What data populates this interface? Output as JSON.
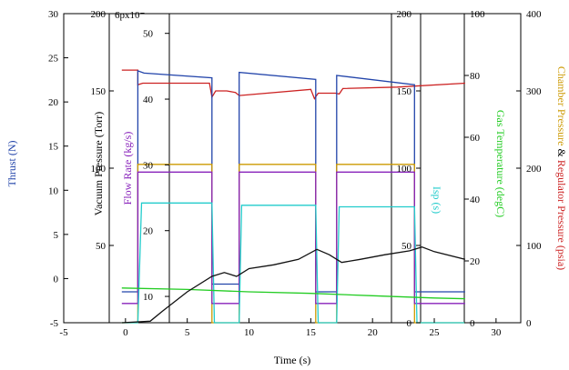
{
  "chart_data": {
    "type": "line",
    "title": "",
    "xlabel": "Time (s)",
    "xlim": [
      -5,
      32
    ],
    "x_ticks": [
      "-5",
      "0",
      "5",
      "10",
      "15",
      "20",
      "25",
      "30"
    ],
    "axes": [
      {
        "id": "thrust",
        "label": "Thrust (N)",
        "color": "#2244aa",
        "ylim": [
          -5,
          30
        ],
        "ticks": [
          "-5",
          "0",
          "5",
          "10",
          "15",
          "20",
          "25",
          "30"
        ]
      },
      {
        "id": "vacuum",
        "label": "Vacuum Pressure (Torr)",
        "color": "#000000",
        "ylim": [
          0,
          200
        ],
        "ticks": [
          "50",
          "100",
          "150",
          "200"
        ]
      },
      {
        "id": "flow",
        "label": "Flow Rate (kg/s)",
        "color": "#8822bb",
        "ylim": [
          6,
          53
        ],
        "ticks": [
          "10",
          "20",
          "30",
          "40",
          "50"
        ],
        "exponent_label": "6px10⁻"
      },
      {
        "id": "isp",
        "label": "Isp (s)",
        "color": "#22cccc",
        "ylim": [
          0,
          200
        ],
        "ticks": [
          "0",
          "50",
          "100",
          "150",
          "200"
        ]
      },
      {
        "id": "gastemp",
        "label": "Gas Temperature (degC)",
        "color": "#22cc22",
        "ylim": [
          0,
          100
        ],
        "ticks": [
          "0",
          "20",
          "40",
          "60",
          "80",
          "100"
        ]
      },
      {
        "id": "pressure",
        "label_parts": [
          "Chamber Pressure",
          " & ",
          "Regulator Pressure (psia)"
        ],
        "label_colors": [
          "#cc9900",
          "#000000",
          "#cc2222"
        ],
        "ylim": [
          0,
          400
        ],
        "ticks": [
          "0",
          "100",
          "200",
          "300",
          "400"
        ]
      }
    ],
    "series": [
      {
        "axis": "pressure",
        "color": "#cc2222",
        "x": [
          -0.3,
          1.0,
          1.0,
          1.4,
          6.8,
          7.0,
          7.3,
          8.2,
          8.9,
          9.2,
          15.0,
          15.3,
          15.6,
          17.0,
          17.3,
          17.6,
          22.0,
          27.5
        ],
        "y": [
          327,
          327,
          308,
          310,
          310,
          292,
          300,
          300,
          298,
          294,
          302,
          290,
          297,
          297,
          296,
          303,
          305,
          310
        ]
      },
      {
        "axis": "pressure",
        "color": "#2244aa",
        "x": [
          -0.3,
          1.0,
          1.0,
          1.5,
          7.0,
          7.0,
          9.2,
          9.2,
          15.4,
          15.4,
          17.1,
          17.1,
          23.4,
          23.4,
          27.5
        ],
        "y": [
          40,
          40,
          326,
          323,
          317,
          50,
          50,
          324,
          315,
          40,
          40,
          320,
          308,
          40,
          40
        ]
      },
      {
        "axis": "pressure",
        "color": "#cc9900",
        "x": [
          -0.3,
          1.0,
          1.0,
          7.0,
          7.0,
          9.2,
          9.2,
          15.4,
          15.4,
          17.1,
          17.1,
          23.4,
          23.4,
          27.5
        ],
        "y": [
          0,
          0,
          205,
          205,
          0,
          0,
          205,
          205,
          0,
          0,
          205,
          205,
          0,
          0
        ]
      },
      {
        "axis": "pressure",
        "color": "#8822bb",
        "x": [
          -0.3,
          1.0,
          1.0,
          7.0,
          7.0,
          9.2,
          9.2,
          15.4,
          15.4,
          17.1,
          17.1,
          23.4,
          23.4,
          27.5
        ],
        "y": [
          25,
          25,
          195,
          195,
          25,
          25,
          195,
          195,
          25,
          25,
          195,
          195,
          25,
          25
        ]
      },
      {
        "axis": "pressure",
        "color": "#22cccc",
        "x": [
          -0.3,
          1.0,
          1.3,
          7.0,
          7.2,
          9.2,
          9.4,
          15.4,
          15.6,
          17.1,
          17.3,
          23.4,
          23.6,
          27.5
        ],
        "y": [
          0,
          0,
          155,
          155,
          0,
          0,
          152,
          152,
          0,
          0,
          150,
          150,
          0,
          0
        ]
      },
      {
        "axis": "pressure",
        "color": "#22cc22",
        "x": [
          -0.3,
          5,
          10,
          15,
          20,
          25,
          27.5
        ],
        "y": [
          45,
          43,
          40,
          38,
          35,
          32,
          31
        ]
      },
      {
        "axis": "pressure",
        "color": "#111111",
        "x": [
          -0.3,
          2.0,
          3.0,
          5.0,
          7.0,
          8.0,
          9.0,
          10.0,
          12.0,
          14.0,
          15.5,
          16.5,
          17.5,
          19.0,
          21.0,
          23.0,
          24.0,
          25.0,
          27.5
        ],
        "y": [
          0,
          2,
          15,
          40,
          60,
          65,
          60,
          70,
          75,
          82,
          95,
          88,
          78,
          82,
          88,
          93,
          98,
          92,
          82
        ]
      }
    ],
    "grid": false
  }
}
